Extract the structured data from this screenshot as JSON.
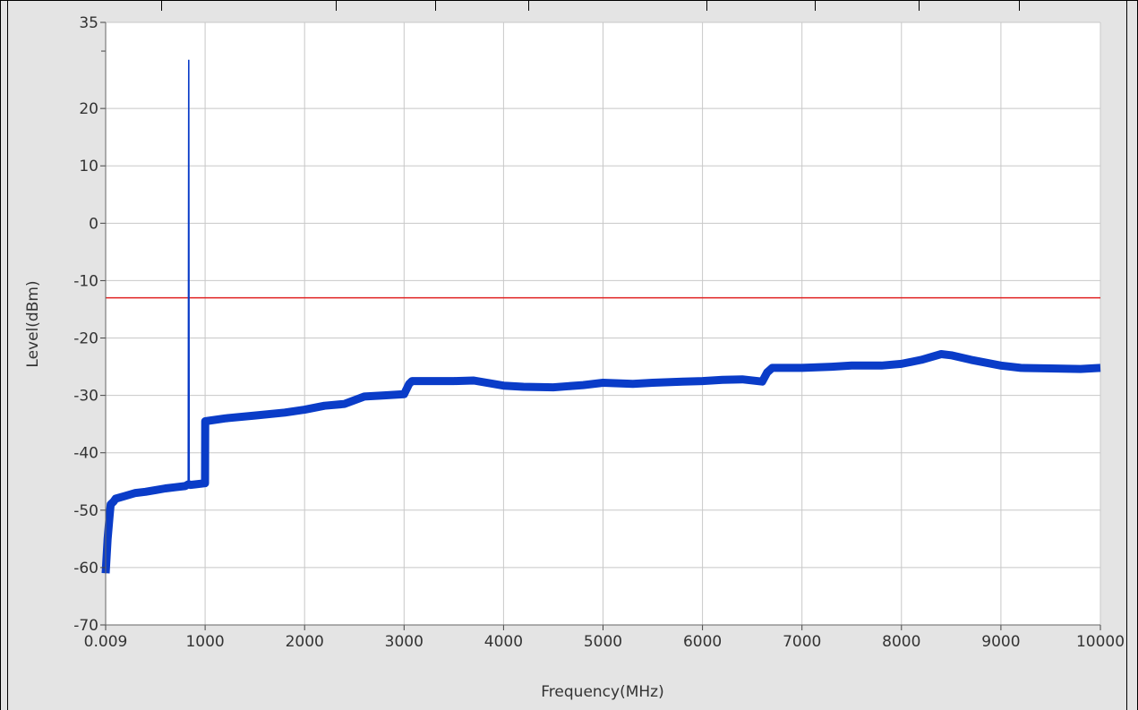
{
  "chart_data": {
    "type": "line",
    "title": "",
    "xlabel": "Frequency(MHz)",
    "ylabel": "Level(dBm)",
    "xlim": [
      0.009,
      10000
    ],
    "ylim": [
      -70,
      35
    ],
    "x_ticks": [
      "0.009",
      "1000",
      "2000",
      "3000",
      "4000",
      "5000",
      "6000",
      "7000",
      "8000",
      "9000",
      "10000"
    ],
    "y_ticks": [
      "35",
      "20",
      "10",
      "0",
      "-10",
      "-20",
      "-30",
      "-40",
      "-50",
      "-60",
      "-70"
    ],
    "grid": true,
    "colors": {
      "trace": "#0a3cc8",
      "limit": "#e02020",
      "plot_bg": "#ffffff",
      "outer_bg": "#e4e4e4",
      "grid": "#c8c8c8"
    },
    "limit_line": {
      "y": -13
    },
    "series": [
      {
        "x": [
          0.009,
          20,
          40,
          50,
          80,
          100,
          200,
          300,
          400,
          500,
          600,
          700,
          800,
          830,
          835,
          840,
          850,
          900,
          999,
          1001,
          1200,
          1500,
          1800,
          2000,
          2200,
          2400,
          2600,
          2800,
          3000,
          3050,
          3080,
          3200,
          3500,
          3700,
          4000,
          4200,
          4500,
          4800,
          5000,
          5300,
          5500,
          5800,
          6000,
          6200,
          6400,
          6600,
          6650,
          6700,
          7000,
          7300,
          7500,
          7800,
          8000,
          8200,
          8400,
          8500,
          8700,
          9000,
          9200,
          9500,
          9800,
          10000
        ],
        "y": [
          -61,
          -55,
          -51,
          -49,
          -48.5,
          -48,
          -47.5,
          -47,
          -46.8,
          -46.5,
          -46.2,
          -46,
          -45.8,
          -45.5,
          28.5,
          -45.5,
          -45.6,
          -45.5,
          -45.3,
          -34.5,
          -34,
          -33.5,
          -33,
          -32.5,
          -31.8,
          -31.5,
          -30.2,
          -30,
          -29.8,
          -28,
          -27.5,
          -27.5,
          -27.5,
          -27.4,
          -28.3,
          -28.5,
          -28.6,
          -28.2,
          -27.8,
          -28,
          -27.8,
          -27.6,
          -27.5,
          -27.3,
          -27.2,
          -27.6,
          -26,
          -25.2,
          -25.2,
          -25,
          -24.8,
          -24.8,
          -24.5,
          -23.8,
          -22.8,
          -23,
          -23.8,
          -24.8,
          -25.2,
          -25.3,
          -25.4,
          -25.2
        ]
      }
    ]
  }
}
